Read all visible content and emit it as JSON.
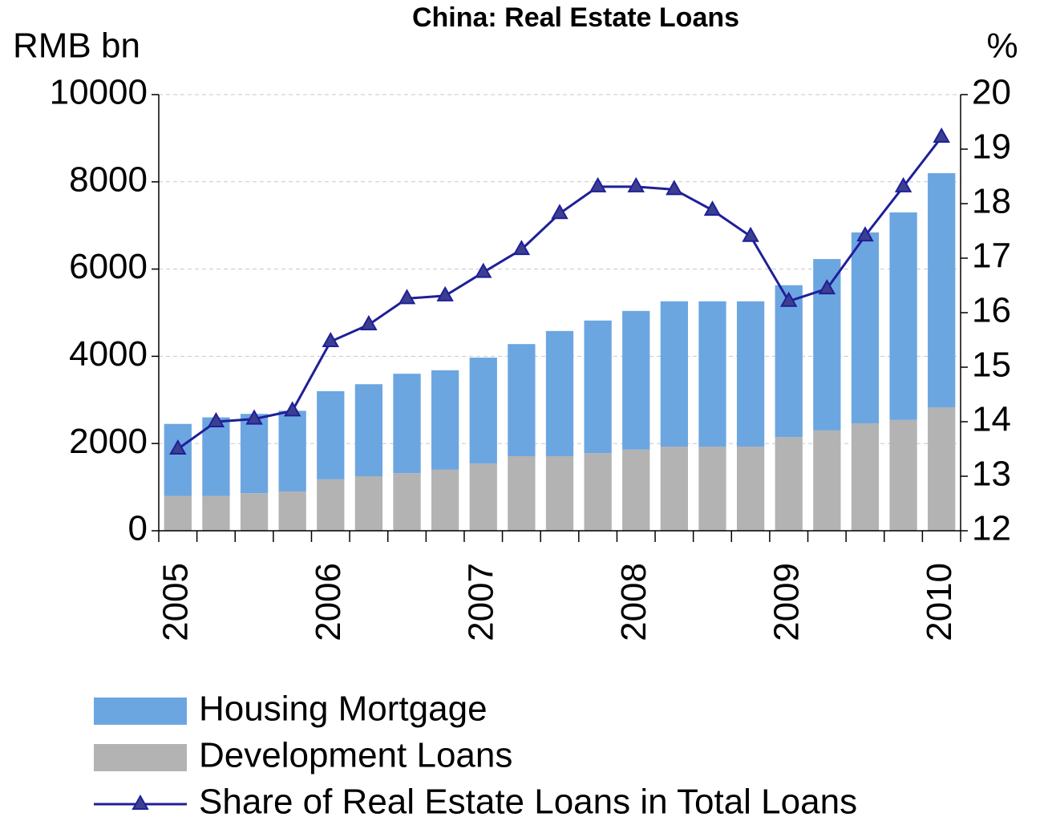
{
  "chart_data": {
    "type": "bar",
    "title": "China: Real Estate Loans",
    "y_label": "RMB bn",
    "y2_label": "%",
    "categories": [
      "2005",
      null,
      null,
      null,
      "2006",
      null,
      null,
      null,
      "2007",
      null,
      null,
      null,
      "2008",
      null,
      null,
      null,
      "2009",
      null,
      null,
      null,
      "2010"
    ],
    "stacked": true,
    "series": [
      {
        "name": "Housing Mortgage",
        "type": "bar",
        "color": "#6ca6e0",
        "values": [
          1650,
          1800,
          1820,
          1850,
          2020,
          2110,
          2280,
          2280,
          2430,
          2570,
          2870,
          3040,
          3180,
          3330,
          3330,
          3330,
          3480,
          3930,
          4380,
          4760,
          5370
        ]
      },
      {
        "name": "Development Loans",
        "type": "bar",
        "color": "#b3b3b3",
        "values": [
          800,
          800,
          860,
          900,
          1180,
          1250,
          1320,
          1400,
          1540,
          1710,
          1710,
          1780,
          1860,
          1930,
          1930,
          1930,
          2150,
          2300,
          2460,
          2540,
          2830
        ]
      },
      {
        "name": "Share of Real Estate Loans in Total Loans",
        "type": "line",
        "axis": "y2",
        "color": "#1f1f99",
        "marker_color": "#3c3f8f",
        "values": [
          13.5,
          14.0,
          14.05,
          14.2,
          15.47,
          15.78,
          16.26,
          16.31,
          16.74,
          17.16,
          17.82,
          18.31,
          18.31,
          18.26,
          17.88,
          17.4,
          16.21,
          16.44,
          17.41,
          18.31,
          19.22
        ]
      }
    ],
    "ylim": [
      0,
      10000
    ],
    "yticks": [
      0,
      2000,
      4000,
      6000,
      8000,
      10000
    ],
    "y2lim": [
      12,
      20
    ],
    "y2ticks": [
      12,
      13,
      14,
      15,
      16,
      17,
      18,
      19,
      20
    ],
    "grid": true
  }
}
